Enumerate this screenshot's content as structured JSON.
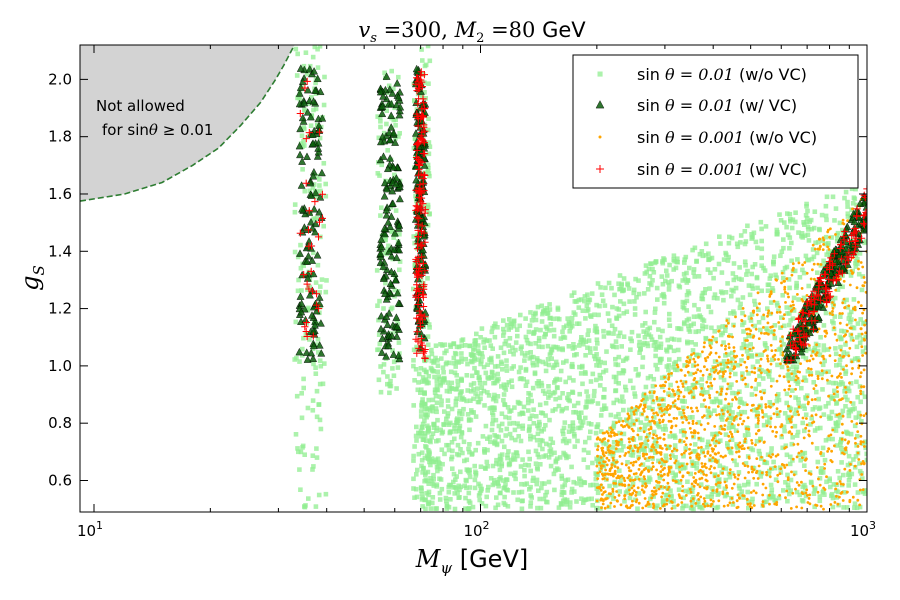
{
  "chart_data": {
    "type": "scatter",
    "title": {
      "prefix": "v",
      "prefix_sub": "s",
      "eq1": " =300, ",
      "m": "M",
      "m_sub": "2",
      "eq2": " =80 ",
      "unit": "GeV"
    },
    "xlabel": {
      "symbol": "M",
      "sub": "ψ",
      "unit": " [GeV]"
    },
    "ylabel": {
      "symbol": "g",
      "sub": "S"
    },
    "xscale": "log",
    "xlim": [
      9.2,
      1000
    ],
    "ylim": [
      0.49,
      2.12
    ],
    "x_ticks": [
      {
        "value": 10,
        "base": "10",
        "exp": "1"
      },
      {
        "value": 100,
        "base": "10",
        "exp": "2"
      },
      {
        "value": 1000,
        "base": "10",
        "exp": "3"
      }
    ],
    "y_ticks": [
      {
        "value": 0.6,
        "label": "0.6"
      },
      {
        "value": 0.8,
        "label": "0.8"
      },
      {
        "value": 1.0,
        "label": "1.0"
      },
      {
        "value": 1.2,
        "label": "1.2"
      },
      {
        "value": 1.4,
        "label": "1.4"
      },
      {
        "value": 1.6,
        "label": "1.6"
      },
      {
        "value": 1.8,
        "label": "1.8"
      },
      {
        "value": 2.0,
        "label": "2.0"
      }
    ],
    "excluded_region": {
      "label_line1": "Not allowed",
      "label_line2": "for sin",
      "label_theta": "θ",
      "label_rest": " ≥ 0.01",
      "color": "#d3d3d3",
      "boundary_color": "#2e7d32",
      "boundary": [
        [
          9.2,
          1.575
        ],
        [
          12,
          1.6
        ],
        [
          15,
          1.64
        ],
        [
          18,
          1.7
        ],
        [
          21,
          1.76
        ],
        [
          24,
          1.84
        ],
        [
          27,
          1.92
        ],
        [
          29.5,
          2.0
        ],
        [
          31,
          2.05
        ],
        [
          33,
          2.12
        ]
      ]
    },
    "series": [
      {
        "name": "sin θ = 0.01 (w/o VC)",
        "label_pre": "sin ",
        "label_math": "θ = 0.01",
        "label_post": " (w/o VC)",
        "marker": "square",
        "color": "#90ee90"
      },
      {
        "name": "sin θ = 0.01 (w/ VC)",
        "label_pre": "sin ",
        "label_math": "θ = 0.01",
        "label_post": " (w/ VC)",
        "marker": "triangle",
        "color": "#0b5d0b"
      },
      {
        "name": "sin θ = 0.001 (w/o VC)",
        "label_pre": "sin ",
        "label_math": "θ = 0.001",
        "label_post": " (w/o VC)",
        "marker": "dot",
        "color": "#ffa500"
      },
      {
        "name": "sin θ = 0.001 (w/ VC)",
        "label_pre": "sin ",
        "label_math": "θ = 0.001",
        "label_post": " (w/ VC)",
        "marker": "plus",
        "color": "#ff0000"
      }
    ],
    "clusters": [
      {
        "series": 0,
        "kind": "band",
        "x": [
          33,
          40
        ],
        "y": [
          0.5,
          2.12
        ],
        "count": 160
      },
      {
        "series": 0,
        "kind": "band",
        "x": [
          54,
          62
        ],
        "y": [
          0.9,
          2.05
        ],
        "count": 110
      },
      {
        "series": 0,
        "kind": "band",
        "x": [
          67,
          74
        ],
        "y": [
          0.5,
          2.12
        ],
        "count": 180
      },
      {
        "series": 0,
        "kind": "region",
        "x": [
          70,
          1000
        ],
        "y": [
          0.5,
          1.65
        ],
        "count": 2600
      },
      {
        "series": 2,
        "kind": "region",
        "x": [
          200,
          1000
        ],
        "y": [
          0.5,
          1.6
        ],
        "count": 1500
      },
      {
        "series": 1,
        "kind": "band",
        "x": [
          34,
          39
        ],
        "y": [
          1.02,
          2.05
        ],
        "count": 120
      },
      {
        "series": 1,
        "kind": "band",
        "x": [
          55,
          62
        ],
        "y": [
          1.02,
          2.05
        ],
        "count": 150
      },
      {
        "series": 1,
        "kind": "band",
        "x": [
          68,
          72
        ],
        "y": [
          1.02,
          2.05
        ],
        "count": 160
      },
      {
        "series": 1,
        "kind": "diagonal",
        "x": [
          620,
          1000
        ],
        "y": [
          1.02,
          1.55
        ],
        "count": 220
      },
      {
        "series": 3,
        "kind": "band",
        "x": [
          34,
          39
        ],
        "y": [
          1.1,
          2.05
        ],
        "count": 30
      },
      {
        "series": 3,
        "kind": "band",
        "x": [
          68,
          72
        ],
        "y": [
          1.02,
          2.05
        ],
        "count": 150
      },
      {
        "series": 3,
        "kind": "diagonal",
        "x": [
          620,
          1000
        ],
        "y": [
          1.02,
          1.55
        ],
        "count": 120
      }
    ]
  }
}
